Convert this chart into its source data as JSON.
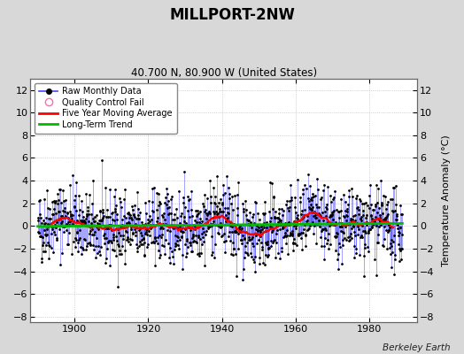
{
  "title": "MILLPORT-2NW",
  "subtitle": "40.700 N, 80.900 W (United States)",
  "ylabel_right": "Temperature Anomaly (°C)",
  "attribution": "Berkeley Earth",
  "ylim": [
    -8.5,
    13
  ],
  "xlim": [
    1888,
    1993
  ],
  "yticks": [
    -8,
    -6,
    -4,
    -2,
    0,
    2,
    4,
    6,
    8,
    10,
    12
  ],
  "xticks": [
    1900,
    1920,
    1940,
    1960,
    1980
  ],
  "start_year": 1890,
  "n_months": 1188,
  "background_color": "#d8d8d8",
  "plot_bg_color": "#ffffff",
  "line_color": "#4444ff",
  "dot_color": "#000000",
  "ma_color": "#ff0000",
  "trend_color": "#00bb00",
  "qc_color": "#ff69b4",
  "seed": 42
}
